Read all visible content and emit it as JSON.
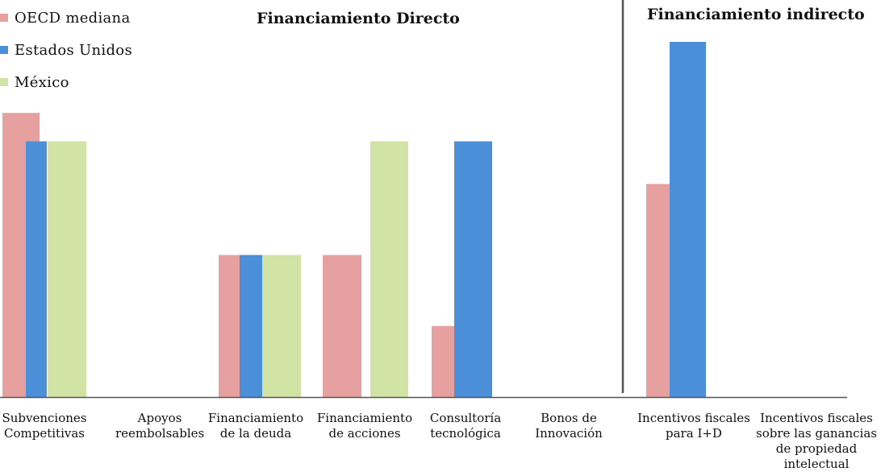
{
  "colors": {
    "oecd": "#e6a0a0",
    "usa": "#4a8fd8",
    "mexico": "#d2e3a6",
    "axis": "#555555"
  },
  "legend": [
    {
      "key": "oecd",
      "label": "OECD mediana"
    },
    {
      "key": "usa",
      "label": "Estados Unidos"
    },
    {
      "key": "mexico",
      "label": "México"
    }
  ],
  "sections": {
    "direct": "Financiamiento Directo",
    "indirect": "Financiamiento indirecto"
  },
  "chart_data": {
    "type": "bar",
    "title": "",
    "xlabel": "",
    "ylabel": "",
    "ylim": [
      0,
      5
    ],
    "grid": false,
    "legend_position": "top-left",
    "categories": [
      "Subvenciones Competitivas",
      "Apoyos reembolsables",
      "Financiamiento de la deuda",
      "Financiamiento de acciones",
      "Consultoría tecnológica",
      "Bonos de Innovación",
      "Incentivos fiscales para I+D",
      "Incentivos fiscales sobre las ganancias de propiedad intelectual"
    ],
    "series": [
      {
        "name": "OECD mediana",
        "key": "oecd",
        "values": [
          4,
          0,
          2,
          2,
          1,
          0,
          3,
          0
        ]
      },
      {
        "name": "Estados Unidos",
        "key": "usa",
        "values": [
          3.6,
          0,
          2,
          0,
          3.6,
          0,
          5,
          0
        ]
      },
      {
        "name": "México",
        "key": "mexico",
        "values": [
          3.6,
          0,
          2,
          3.6,
          0,
          0,
          0,
          0
        ]
      }
    ]
  }
}
